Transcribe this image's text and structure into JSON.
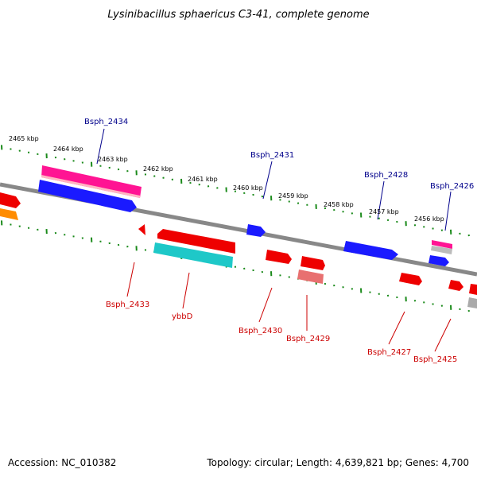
{
  "title": "Lysinibacillus sphaericus C3-41, complete genome",
  "footer": {
    "accession": "Accession: NC_010382",
    "summary": "Topology: circular; Length: 4,639,821 bp; Genes: 4,700"
  },
  "colors": {
    "backbone": "#888888",
    "tick": "#1a8a1a",
    "label_top": "#00008b",
    "label_bottom": "#cc0000"
  },
  "scale_labels": [
    "2465 kbp",
    "2464 kbp",
    "2463 kbp",
    "2462 kbp",
    "2461 kbp",
    "2460 kbp",
    "2459 kbp",
    "2458 kbp",
    "2457 kbp",
    "2456 kbp"
  ],
  "gene_labels_top": [
    "Bsph_2434",
    "Bsph_2431",
    "Bsph_2428",
    "Bsph_2426"
  ],
  "gene_labels_bottom": [
    "Bsph_2433",
    "ybbD",
    "Bsph_2430",
    "Bsph_2429",
    "Bsph_2427",
    "Bsph_2425"
  ]
}
